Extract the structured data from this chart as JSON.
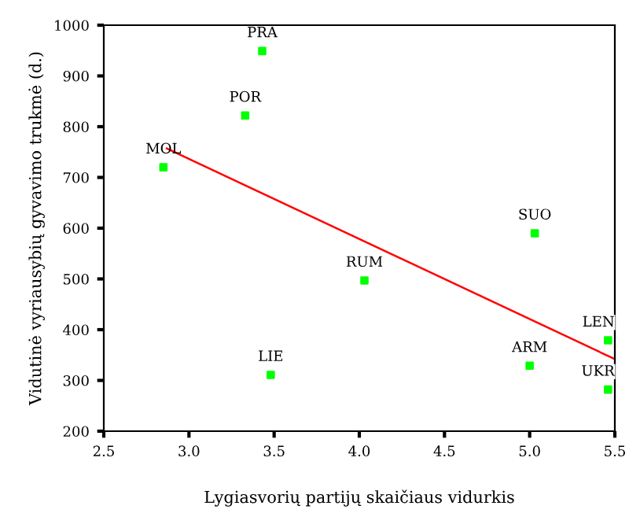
{
  "chart_data": {
    "type": "scatter",
    "xlabel": "Lygiasvorių partijų skaičiaus vidurkis",
    "ylabel": "Vidutinė vyriausybių gyvavimo trukmė (d.)",
    "series": [
      {
        "color": "#00ff00",
        "marker": "square",
        "x": [
          3.43,
          3.33,
          2.85,
          4.03,
          3.48,
          5.03,
          5.0,
          5.46,
          5.46
        ],
        "values": [
          949,
          822,
          720,
          497,
          311,
          590,
          329,
          379,
          282
        ]
      },
      {
        "type": "line",
        "color": "#ff0000",
        "marker": "none",
        "x": [
          2.87,
          5.5
        ],
        "values": [
          757,
          342
        ]
      }
    ],
    "annotations": [
      {
        "text": "PRA",
        "x": 3.43,
        "y": 949
      },
      {
        "text": "POR",
        "x": 3.33,
        "y": 822
      },
      {
        "text": "MOL",
        "x": 2.85,
        "y": 720
      },
      {
        "text": "RUM",
        "x": 4.03,
        "y": 497
      },
      {
        "text": "LIE",
        "x": 3.48,
        "y": 311
      },
      {
        "text": "SUO",
        "x": 5.03,
        "y": 590
      },
      {
        "text": "ARM",
        "x": 5.0,
        "y": 329
      },
      {
        "text": "LEN",
        "x": 5.46,
        "y": 379
      },
      {
        "text": "UKR",
        "x": 5.46,
        "y": 282
      }
    ],
    "xlim": [
      2.5,
      5.5
    ],
    "ylim": [
      200,
      1000
    ],
    "xticks": [
      2.5,
      {
        "value": 3,
        "label": "3.0"
      },
      3.5,
      {
        "value": 4,
        "label": "4.0"
      },
      4.5,
      {
        "value": 5,
        "label": "5.0"
      },
      5.5
    ],
    "yticks": [
      200,
      300,
      400,
      500,
      600,
      700,
      800,
      900,
      1000
    ],
    "grid": false,
    "legend": false
  }
}
